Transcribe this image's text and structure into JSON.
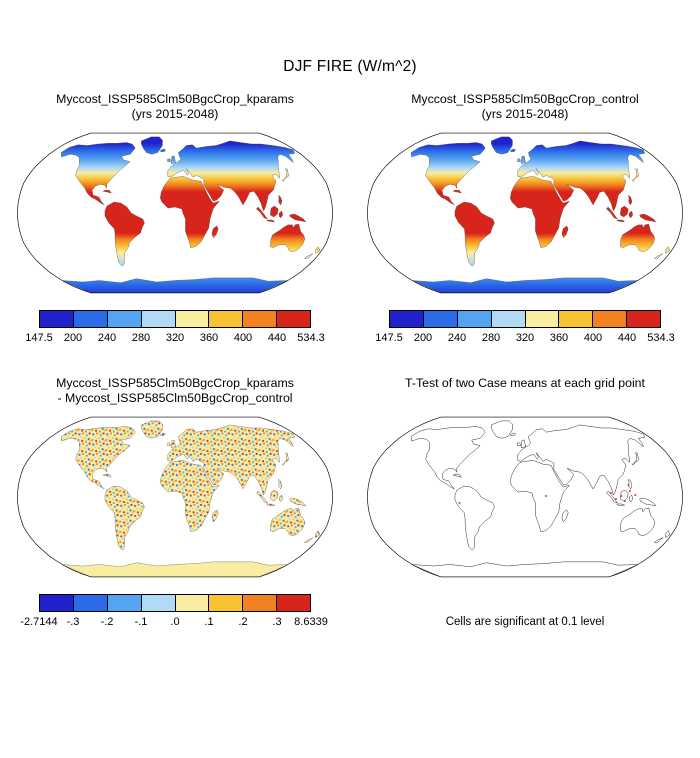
{
  "figure": {
    "title": "DJF FIRE (W/m^2)"
  },
  "panels": {
    "kparams": {
      "title_line1": "Myccost_ISSP585Clm50BgcCrop_kparams",
      "title_line2": "(yrs 2015-2048)"
    },
    "control": {
      "title_line1": "Myccost_ISSP585Clm50BgcCrop_control",
      "title_line2": "(yrs 2015-2048)"
    },
    "diff": {
      "title_line1": "Myccost_ISSP585Clm50BgcCrop_kparams",
      "title_line2": "- Myccost_ISSP585Clm50BgcCrop_control"
    },
    "ttest": {
      "title_line1": "T-Test of two Case means at each grid point",
      "caption": "Cells are significant at 0.1 level"
    }
  },
  "colorbars": {
    "absolute": {
      "tick_labels": [
        "147.5",
        "200",
        "240",
        "280",
        "320",
        "360",
        "400",
        "440",
        "534.3"
      ],
      "colors": [
        "#2222cc",
        "#2b6be8",
        "#55a4f0",
        "#b0daf5",
        "#f8eda0",
        "#f8c235",
        "#f28220",
        "#d8251c"
      ]
    },
    "difference": {
      "tick_labels": [
        "-2.7144",
        "-.3",
        "-.2",
        "-.1",
        ".0",
        ".1",
        ".2",
        ".3",
        "8.6339"
      ],
      "colors": [
        "#2222cc",
        "#2b6be8",
        "#55a4f0",
        "#b0daf5",
        "#f8eda0",
        "#f8c235",
        "#f28220",
        "#d8251c"
      ]
    }
  },
  "chart_data": [
    {
      "type": "heatmap",
      "title": "Myccost_ISSP585Clm50BgcCrop_kparams",
      "subtitle": "(yrs 2015-2048)",
      "variable": "DJF FIRE (W/m^2)",
      "projection": "robinson",
      "levels": [
        147.5,
        200,
        240,
        280,
        320,
        360,
        400,
        440,
        534.3
      ],
      "palette": [
        "#2222cc",
        "#2b6be8",
        "#55a4f0",
        "#b0daf5",
        "#f8eda0",
        "#f8c235",
        "#f28220",
        "#d8251c"
      ],
      "legend_position": "bottom",
      "zonal_pattern": [
        {
          "lat_band": "60N-90N and Antarctica",
          "approx_value": "147.5-240"
        },
        {
          "lat_band": "45N-60N",
          "approx_value": "240-320"
        },
        {
          "lat_band": "35N-45N",
          "approx_value": "320-400"
        },
        {
          "lat_band": "30S-35N tropics/subtropics",
          "approx_value": "440-534.3"
        },
        {
          "lat_band": "30S-45S",
          "approx_value": "320-440"
        }
      ]
    },
    {
      "type": "heatmap",
      "title": "Myccost_ISSP585Clm50BgcCrop_control",
      "subtitle": "(yrs 2015-2048)",
      "variable": "DJF FIRE (W/m^2)",
      "projection": "robinson",
      "levels": [
        147.5,
        200,
        240,
        280,
        320,
        360,
        400,
        440,
        534.3
      ],
      "palette": [
        "#2222cc",
        "#2b6be8",
        "#55a4f0",
        "#b0daf5",
        "#f8eda0",
        "#f8c235",
        "#f28220",
        "#d8251c"
      ],
      "legend_position": "bottom",
      "zonal_pattern": [
        {
          "lat_band": "60N-90N and Antarctica",
          "approx_value": "147.5-240"
        },
        {
          "lat_band": "45N-60N",
          "approx_value": "240-320"
        },
        {
          "lat_band": "35N-45N",
          "approx_value": "320-400"
        },
        {
          "lat_band": "30S-35N tropics/subtropics",
          "approx_value": "440-534.3"
        },
        {
          "lat_band": "30S-45S",
          "approx_value": "320-440"
        }
      ]
    },
    {
      "type": "heatmap",
      "title": "Myccost_ISSP585Clm50BgcCrop_kparams - Myccost_ISSP585Clm50BgcCrop_control",
      "variable": "DJF FIRE difference (W/m^2)",
      "projection": "robinson",
      "levels": [
        -2.7144,
        -0.3,
        -0.2,
        -0.1,
        0.0,
        0.1,
        0.2,
        0.3,
        8.6339
      ],
      "palette": [
        "#2222cc",
        "#2b6be8",
        "#55a4f0",
        "#b0daf5",
        "#f8eda0",
        "#f8c235",
        "#f28220",
        "#d8251c"
      ],
      "legend_position": "bottom",
      "description": "Noisy mixture of small positive and negative differences scattered over land; Antarctica near zero (pale yellow)"
    },
    {
      "type": "heatmap",
      "title": "T-Test of two Case means at each grid point",
      "annotation": "Cells are significant at 0.1 level",
      "significance_level": 0.1,
      "significant_cells_approx_lonlat": [
        [
          98,
          4
        ],
        [
          104,
          -2
        ],
        [
          110,
          1
        ],
        [
          114,
          -4
        ],
        [
          120,
          6
        ],
        [
          126,
          2
        ],
        [
          119,
          12
        ],
        [
          -75,
          -6
        ],
        [
          24,
          1
        ]
      ],
      "description": "Coastline outline map; only a few isolated significant cells marked in red"
    }
  ]
}
